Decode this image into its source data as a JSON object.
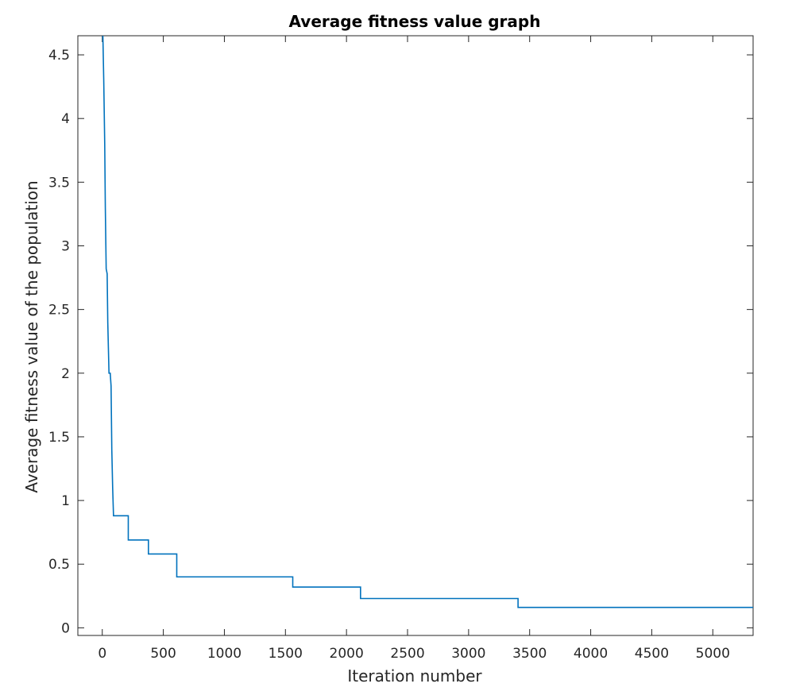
{
  "chart_data": {
    "type": "line",
    "title": "Average fitness value graph",
    "xlabel": "Iteration number",
    "ylabel": "Average fitness value of the population",
    "xlim": [
      -200,
      5330
    ],
    "ylim": [
      -0.06,
      4.65
    ],
    "x_ticks": [
      0,
      500,
      1000,
      1500,
      2000,
      2500,
      3000,
      3500,
      4000,
      4500,
      5000
    ],
    "y_ticks": [
      0,
      0.5,
      1,
      1.5,
      2,
      2.5,
      3,
      3.5,
      4,
      4.5
    ],
    "x_tick_labels": [
      "0",
      "500",
      "1000",
      "1500",
      "2000",
      "2500",
      "3000",
      "3500",
      "4000",
      "4500",
      "5000"
    ],
    "y_tick_labels": [
      "0",
      "0.5",
      "1",
      "1.5",
      "2",
      "2.5",
      "3",
      "3.5",
      "4",
      "4.5"
    ],
    "grid": false,
    "box": true,
    "line_color": "#0072BD",
    "series": [
      {
        "x": [
          5,
          12,
          20,
          25,
          32,
          40,
          45,
          50,
          55,
          60,
          65,
          72,
          78,
          85,
          92,
          100,
          213,
          213,
          378,
          378,
          610,
          610,
          1560,
          1560,
          2115,
          2115,
          3405,
          3405,
          5330
        ],
        "y": [
          4.65,
          4.3,
          3.8,
          3.3,
          2.82,
          2.78,
          2.4,
          2.2,
          2.0,
          2.0,
          2.0,
          1.9,
          1.4,
          1.1,
          0.88,
          0.88,
          0.88,
          0.69,
          0.69,
          0.58,
          0.58,
          0.4,
          0.4,
          0.32,
          0.32,
          0.23,
          0.23,
          0.16,
          0.16
        ]
      }
    ]
  }
}
